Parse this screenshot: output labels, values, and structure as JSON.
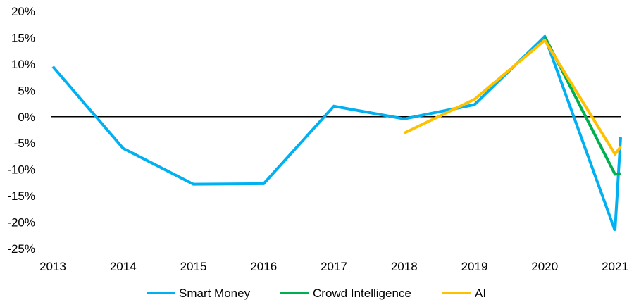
{
  "chart_data": {
    "type": "line",
    "title": "",
    "xlabel": "",
    "ylabel": "",
    "xlim": [
      2013,
      2021
    ],
    "ylim": [
      -25,
      20
    ],
    "x_ticks": [
      "2013",
      "2014",
      "2015",
      "2016",
      "2017",
      "2018",
      "2019",
      "2020",
      "2021"
    ],
    "y_ticks": [
      "20%",
      "15%",
      "10%",
      "5%",
      "0%",
      "-5%",
      "-10%",
      "-15%",
      "-20%",
      "-25%"
    ],
    "y_tick_values": [
      20,
      15,
      10,
      5,
      0,
      -5,
      -10,
      -15,
      -20,
      -25
    ],
    "grid": false,
    "zero_line": true,
    "legend_position": "bottom",
    "series": [
      {
        "name": "Smart Money",
        "color": "#00B0F0",
        "x": [
          2013,
          2014,
          2015,
          2016,
          2017,
          2018,
          2019,
          2020,
          2021,
          2021.08
        ],
        "y": [
          9.5,
          -6.0,
          -12.8,
          -12.7,
          2.0,
          -0.4,
          2.3,
          15.2,
          -21.6,
          -3.9
        ]
      },
      {
        "name": "Crowd Intelligence",
        "color": "#00B050",
        "x": [
          2020,
          2021,
          2021.08
        ],
        "y": [
          15.2,
          -10.9,
          -10.8
        ]
      },
      {
        "name": "AI",
        "color": "#FFC000",
        "x": [
          2018,
          2019,
          2020,
          2021,
          2021.08
        ],
        "y": [
          -3.1,
          3.3,
          14.5,
          -7.1,
          -5.7
        ]
      }
    ]
  }
}
